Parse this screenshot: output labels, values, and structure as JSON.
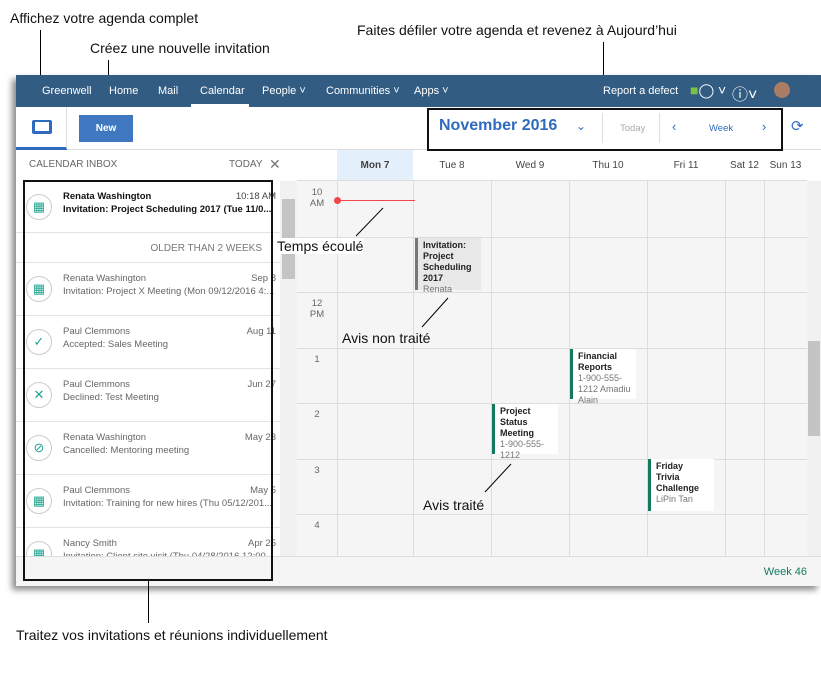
{
  "annotations": {
    "agenda_complet": "Affichez votre agenda complet",
    "nouvelle_invitation": "Créez une nouvelle invitation",
    "defiler": "Faites défiler votre agenda et revenez à Aujourd’hui",
    "temps_ecoule": "Temps écoulé",
    "avis_non_traite": "Avis non traité",
    "avis_traite": "Avis traité",
    "traitez": "Traitez vos invitations et réunions individuellement"
  },
  "nav": {
    "brand": "Greenwell",
    "items": [
      "Home",
      "Mail",
      "Calendar",
      "People",
      "Communities",
      "Apps"
    ],
    "active": "Calendar",
    "report": "Report a defect"
  },
  "toolbar": {
    "new_label": "New",
    "month": "November 2016",
    "today": "Today",
    "view": "Week"
  },
  "inbox": {
    "title": "CALENDAR INBOX",
    "today": "TODAY",
    "older_header": "OLDER THAN 2 WEEKS",
    "items": [
      {
        "name": "Renata Washington",
        "date": "10:18 AM",
        "subject": "Invitation: Project Scheduling 2017 (Tue 11/0...",
        "icon": "calendar-grid-icon",
        "unread": true
      },
      {
        "name": "Renata Washington",
        "date": "Sep 8",
        "subject": "Invitation: Project X Meeting (Mon 09/12/2016 4:...",
        "icon": "calendar-grid-icon"
      },
      {
        "name": "Paul Clemmons",
        "date": "Aug 11",
        "subject": "Accepted: Sales Meeting",
        "icon": "check-icon"
      },
      {
        "name": "Paul Clemmons",
        "date": "Jun 27",
        "subject": "Declined: Test Meeting",
        "icon": "x-icon"
      },
      {
        "name": "Renata Washington",
        "date": "May 23",
        "subject": "Cancelled: Mentoring meeting",
        "icon": "cancel-icon"
      },
      {
        "name": "Paul Clemmons",
        "date": "May 5",
        "subject": "Invitation: Training for new hires (Thu 05/12/201...",
        "icon": "calendar-grid-icon"
      },
      {
        "name": "Nancy Smith",
        "date": "Apr 25",
        "subject": "Invitation: Client site visit (Thu 04/28/2016 12:00...",
        "icon": "calendar-grid-icon"
      }
    ]
  },
  "calendar": {
    "days": [
      "Mon 7",
      "Tue 8",
      "Wed 9",
      "Thu 10",
      "Fri 11",
      "Sat 12",
      "Sun 13"
    ],
    "today": "Mon 7",
    "times": [
      "10\nAM",
      "",
      "12\nPM",
      "1",
      "2",
      "3",
      "4"
    ],
    "events": [
      {
        "title": "Invitation: Project Scheduling 2017",
        "detail": "Renata",
        "pending": true
      },
      {
        "title": "Financial Reports",
        "detail": "1-900-555-1212 Amadiu Alain"
      },
      {
        "title": "Project Status Meeting",
        "detail": "1-900-555-1212"
      },
      {
        "title": "Friday Trivia Challenge",
        "detail": "LiPin Tan"
      }
    ],
    "week": "Week 46",
    "colors": {
      "accent": "#2e6bbf",
      "nav": "#325c82",
      "event_border": "#117a5e",
      "now_line": "#f04747"
    }
  }
}
